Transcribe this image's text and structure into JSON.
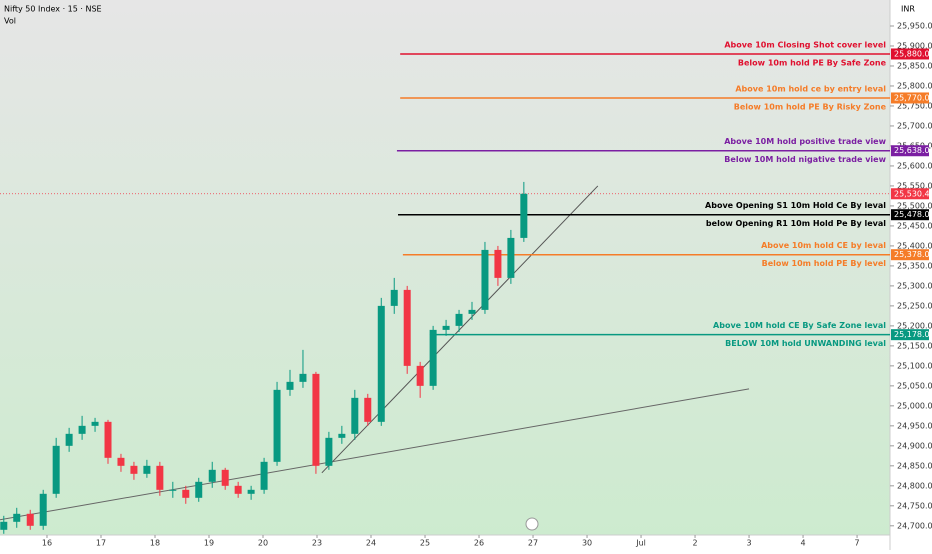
{
  "chart_data": {
    "type": "candlestick",
    "title": "Nifty 50 Index · 15 · NSE",
    "subtitle": "Vol",
    "currency": "INR",
    "x": [
      -0.8,
      -0.56,
      -0.31,
      -0.07,
      0.17,
      0.41,
      0.65,
      0.89,
      1.13,
      1.37,
      1.61,
      1.85,
      2.09,
      2.33,
      2.57,
      2.81,
      3.06,
      3.3,
      3.54,
      3.78,
      4.02,
      4.26,
      4.5,
      4.74,
      4.98,
      5.22,
      5.46,
      5.7,
      5.94,
      6.19,
      6.43,
      6.67,
      6.91,
      7.15,
      7.39,
      7.63,
      7.87,
      8.11,
      8.35,
      8.59,
      8.83
    ],
    "open": [
      24690,
      24710,
      24730,
      24700,
      24780,
      24900,
      24930,
      24950,
      24960,
      24870,
      24850,
      24830,
      24850,
      24790,
      24790,
      24770,
      24810,
      24840,
      24800,
      24780,
      24790,
      24860,
      25040,
      25060,
      25080,
      24850,
      24920,
      24930,
      25020,
      24960,
      25250,
      25290,
      25100,
      25050,
      25190,
      25200,
      25230,
      25240,
      25390,
      25320,
      25420
    ],
    "high": [
      24725,
      24745,
      24740,
      24790,
      24920,
      24945,
      24975,
      24970,
      24965,
      24880,
      24860,
      24865,
      24860,
      24810,
      24800,
      24820,
      24860,
      24845,
      24810,
      24800,
      24870,
      25060,
      25090,
      25140,
      25085,
      24935,
      24950,
      25040,
      25030,
      25270,
      25320,
      25300,
      25110,
      25200,
      25215,
      25240,
      25260,
      25410,
      25400,
      25440,
      25560
    ],
    "low": [
      24680,
      24695,
      24690,
      24690,
      24770,
      24885,
      24915,
      24935,
      24855,
      24835,
      24815,
      24820,
      24775,
      24770,
      24755,
      24760,
      24795,
      24790,
      24770,
      24765,
      24780,
      24850,
      25025,
      25045,
      24830,
      24840,
      24905,
      24915,
      24950,
      24950,
      25230,
      25080,
      25020,
      25040,
      25175,
      25185,
      25215,
      25230,
      25300,
      25305,
      25410
    ],
    "close": [
      24710,
      24730,
      24700,
      24780,
      24900,
      24930,
      24950,
      24960,
      24870,
      24850,
      24830,
      24850,
      24790,
      24790,
      24770,
      24810,
      24840,
      24800,
      24780,
      24790,
      24860,
      25040,
      25060,
      25080,
      24850,
      24920,
      24930,
      25020,
      24960,
      25250,
      25290,
      25100,
      25050,
      25190,
      25200,
      25230,
      25240,
      25390,
      25320,
      25420,
      25530.4
    ],
    "up_color": "#089981",
    "down_color": "#f23645",
    "xlim": [
      -0.87,
      15.61
    ],
    "xticks": [
      {
        "value": 0,
        "label": "16"
      },
      {
        "value": 1,
        "label": "17"
      },
      {
        "value": 2,
        "label": "18"
      },
      {
        "value": 3,
        "label": "19"
      },
      {
        "value": 4,
        "label": "20"
      },
      {
        "value": 5,
        "label": "23"
      },
      {
        "value": 6,
        "label": "24"
      },
      {
        "value": 7,
        "label": "25"
      },
      {
        "value": 8,
        "label": "26"
      },
      {
        "value": 9,
        "label": "27"
      },
      {
        "value": 10,
        "label": "30"
      },
      {
        "value": 11,
        "label": "Jul"
      },
      {
        "value": 12,
        "label": "2"
      },
      {
        "value": 13,
        "label": "3"
      },
      {
        "value": 14,
        "label": "4"
      },
      {
        "value": 15,
        "label": "7"
      }
    ],
    "ylim": [
      24677,
      26015
    ],
    "yticks": [
      {
        "value": 24700,
        "label": "24,700.00"
      },
      {
        "value": 24750,
        "label": "24,750.00"
      },
      {
        "value": 24800,
        "label": "24,800.00"
      },
      {
        "value": 24850,
        "label": "24,850.00"
      },
      {
        "value": 24900,
        "label": "24,900.00"
      },
      {
        "value": 24950,
        "label": "24,950.00"
      },
      {
        "value": 25000,
        "label": "25,000.00"
      },
      {
        "value": 25050,
        "label": "25,050.00"
      },
      {
        "value": 25100,
        "label": "25,100.00"
      },
      {
        "value": 25150,
        "label": "25,150.00"
      },
      {
        "value": 25200,
        "label": "25,200.00"
      },
      {
        "value": 25250,
        "label": "25,250.00"
      },
      {
        "value": 25300,
        "label": "25,300.00"
      },
      {
        "value": 25350,
        "label": "25,350.00"
      },
      {
        "value": 25400,
        "label": "25,400.00"
      },
      {
        "value": 25450,
        "label": "25,450.00"
      },
      {
        "value": 25500,
        "label": "25,500.00"
      },
      {
        "value": 25550,
        "label": "25,550.00"
      },
      {
        "value": 25600,
        "label": "25,600.00"
      },
      {
        "value": 25650,
        "label": "25,650.00"
      },
      {
        "value": 25700,
        "label": "25,700.00"
      },
      {
        "value": 25750,
        "label": "25,750.00"
      },
      {
        "value": 25800,
        "label": "25,800.00"
      },
      {
        "value": 25850,
        "label": "25,850.00"
      },
      {
        "value": 25900,
        "label": "25,900.00"
      },
      {
        "value": 25950,
        "label": "25,950.00"
      }
    ],
    "current_price": {
      "value": 25530.4,
      "label": "25,530.40"
    },
    "levels": [
      {
        "price": {
          "value": 25880,
          "label": "25,880.00"
        },
        "start": 6.54,
        "color": "#e0102f",
        "above": "Above 10m Closing Shot cover level",
        "below": "Below 10m hold PE By Safe Zone"
      },
      {
        "price": {
          "value": 25770,
          "label": "25,770.00"
        },
        "start": 6.54,
        "color": "#f57c28",
        "above": "Above 10m hold ce by entry leval",
        "below": "Below 10m hold PE By Risky Zone"
      },
      {
        "price": {
          "value": 25638,
          "label": "25,638.00"
        },
        "start": 6.48,
        "color": "#7b1fa2",
        "above": "Above 10M hold positive trade view",
        "below": "Below 10M hold nigative trade view"
      },
      {
        "price": {
          "value": 25478,
          "label": "25,478.00"
        },
        "start": 6.5,
        "color": "#000000",
        "above": "Above Opening S1 10m Hold Ce By leval",
        "below": "below Opening R1 10m Hold Pe By leval"
      },
      {
        "price": {
          "value": 25378,
          "label": "25,378.00"
        },
        "start": 6.59,
        "color": "#f57c28",
        "above": "Above 10m hold CE by leval",
        "below": "Below 10m hold PE By level"
      },
      {
        "price": {
          "value": 25178,
          "label": "25,178.00"
        },
        "start": 7.09,
        "color": "#089981",
        "above": "Above 10M hold CE By Safe Zone leval",
        "below": "BELOW 10M hold UNWANDING leval"
      }
    ],
    "trendlines": [
      {
        "x": [
          5.09,
          10.2
        ],
        "y": [
          24832.5,
          25550
        ],
        "color": "#555555"
      },
      {
        "x": [
          -0.87,
          13.0
        ],
        "y": [
          24715,
          25042.5
        ],
        "color": "#666666"
      }
    ]
  }
}
